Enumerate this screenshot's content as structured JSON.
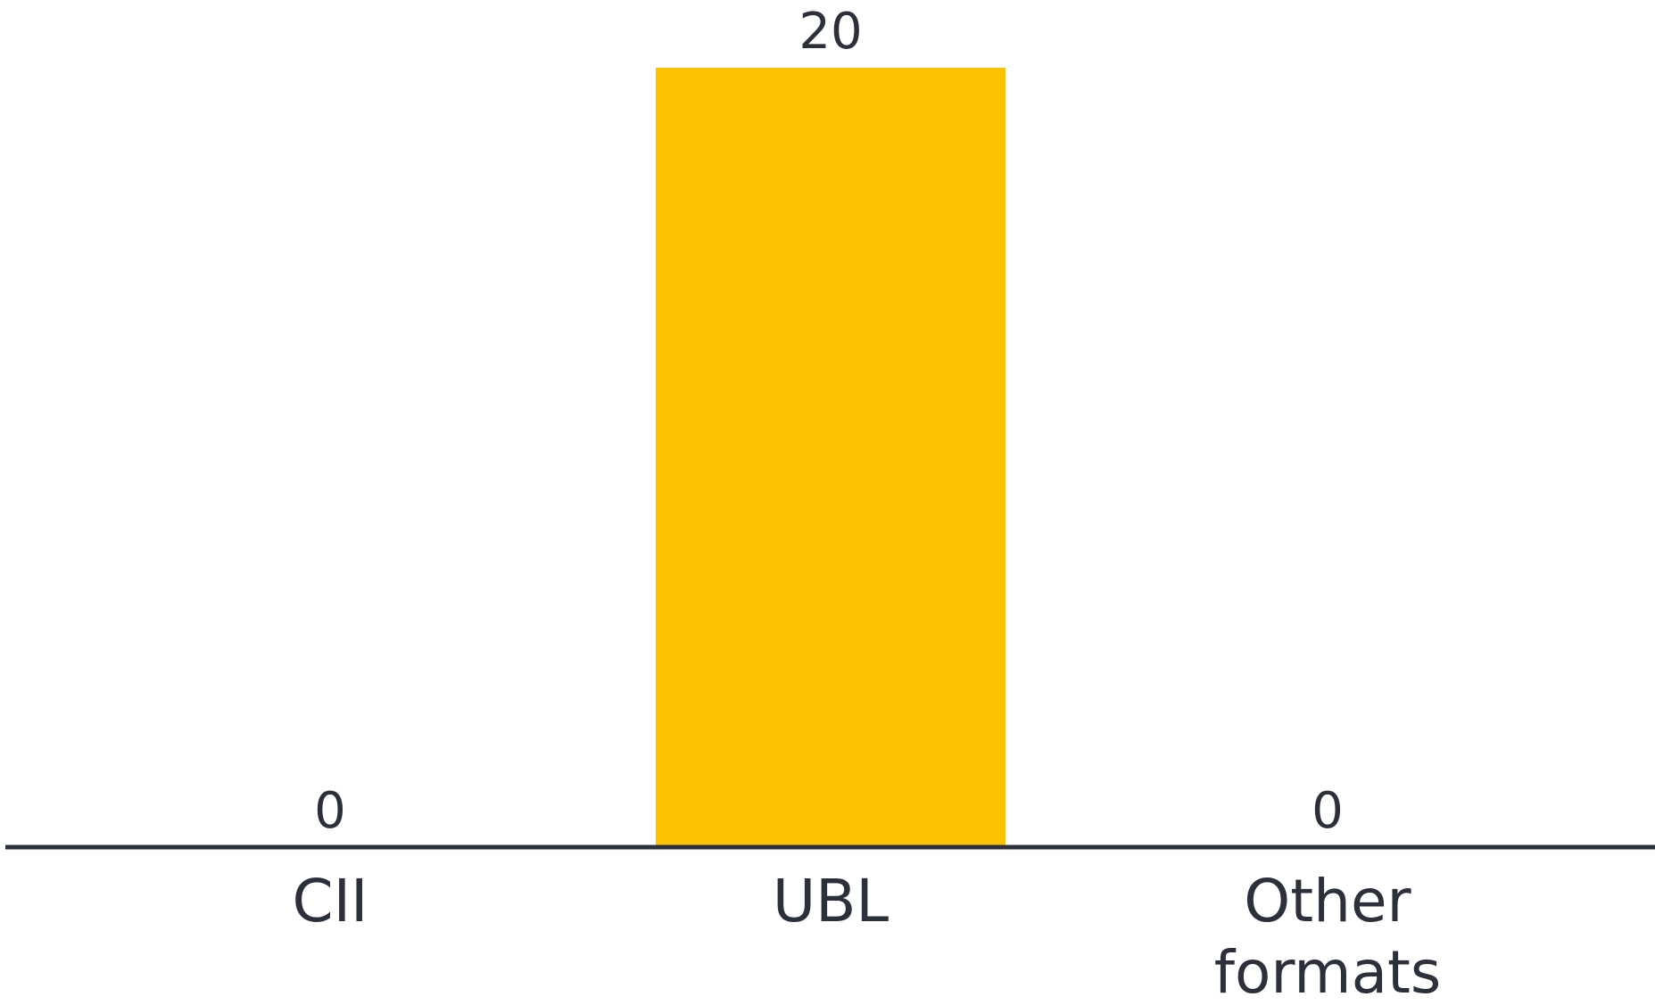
{
  "chart_data": {
    "type": "bar",
    "categories": [
      "CII",
      "UBL",
      "Other formats"
    ],
    "category_lines": [
      [
        "CII"
      ],
      [
        "UBL"
      ],
      [
        "Other",
        "formats"
      ]
    ],
    "values": [
      0,
      20,
      0
    ],
    "value_labels": [
      "0",
      "20",
      "0"
    ],
    "ylim": [
      0,
      20
    ],
    "title": "",
    "xlabel": "",
    "ylabel": "",
    "grid": false,
    "legend": "none",
    "colors": {
      "bar": "#FCC200",
      "axis": "#2b303a",
      "text": "#2b303a"
    }
  }
}
